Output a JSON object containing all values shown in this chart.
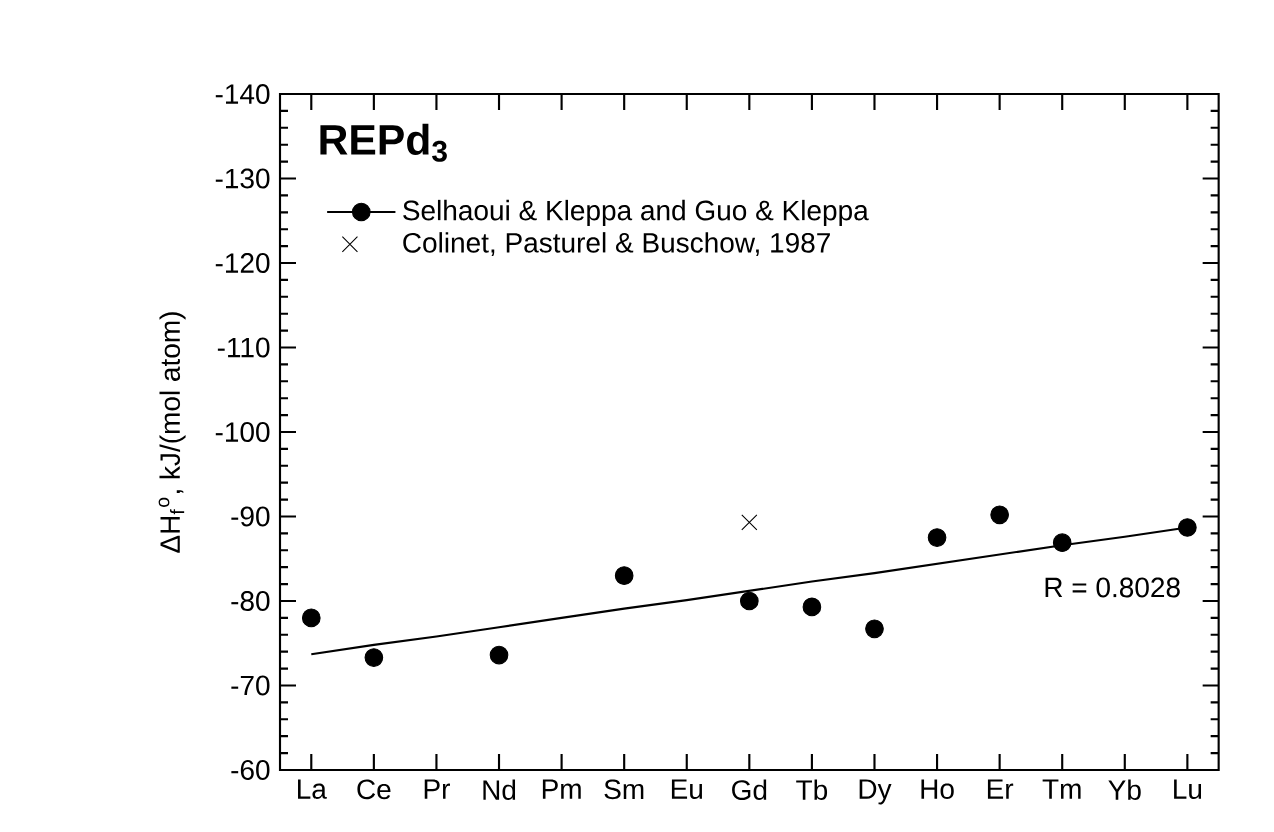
{
  "chart_data": {
    "type": "line",
    "title": "REPd$_{3}$",
    "ylabel": "ΔH$_{f}$$^{o}$, kJ/(mol atom)",
    "categories": [
      "La",
      "Ce",
      "Pr",
      "Nd",
      "Pm",
      "Sm",
      "Eu",
      "Gd",
      "Tb",
      "Dy",
      "Ho",
      "Er",
      "Tm",
      "Yb",
      "Lu"
    ],
    "series": [
      {
        "name": "Selhaoui & Kleppa and Guo & Kleppa",
        "type": "scatter",
        "marker": "circle",
        "color": "#000000",
        "values": [
          -78,
          -73.3,
          null,
          -73.6,
          null,
          -83,
          null,
          -80,
          -79.3,
          -76.7,
          -87.5,
          -90.2,
          -86.9,
          null,
          -88.7
        ]
      },
      {
        "name": "Colinet, Pasturel & Buschow, 1987",
        "type": "scatter",
        "marker": "cross",
        "color": "#000000",
        "values": [
          null,
          null,
          null,
          null,
          null,
          null,
          null,
          -89.3,
          null,
          null,
          null,
          null,
          null,
          null,
          null
        ]
      },
      {
        "color": "#000000",
        "values": [
          -73.7,
          -74.8,
          -75.8,
          -76.9,
          -78.0,
          -79.1,
          -80.1,
          -81.2,
          -82.3,
          -83.3,
          -84.4,
          -85.5,
          -86.6,
          -87.6,
          -88.7
        ]
      }
    ],
    "ylim": [
      -60,
      -140
    ],
    "yticks": [
      -60,
      -70,
      -80,
      -90,
      -100,
      -110,
      -120,
      -130,
      -140
    ],
    "legend": "top left",
    "grid": false,
    "annotations": [
      "R = 0.8028"
    ]
  }
}
